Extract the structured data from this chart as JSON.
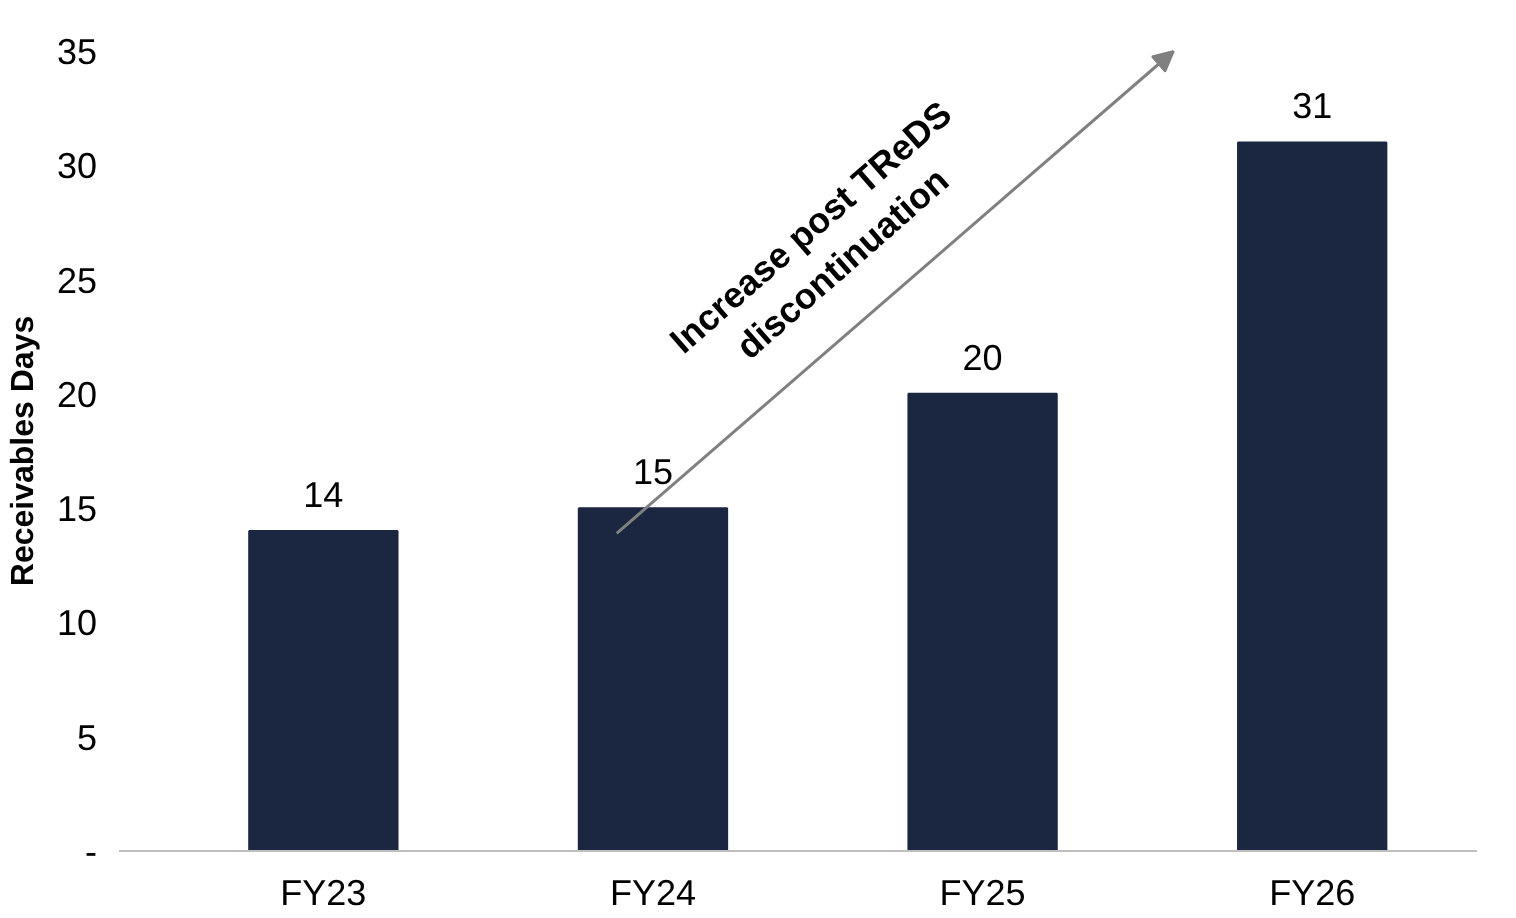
{
  "chart_data": {
    "type": "bar",
    "ylabel": "Receivables Days",
    "categories": [
      "FY23",
      "FY24",
      "FY25",
      "FY26"
    ],
    "values": [
      14,
      15,
      20,
      31
    ],
    "color": "#1b2640",
    "ylim": [
      0,
      35
    ],
    "yticks": [
      {
        "value": 0,
        "label": "-"
      },
      5,
      10,
      15,
      20,
      25,
      30,
      35
    ],
    "data_labels": true,
    "grid": false,
    "annotations": [
      "Increase post TReDS discontinuation"
    ]
  }
}
